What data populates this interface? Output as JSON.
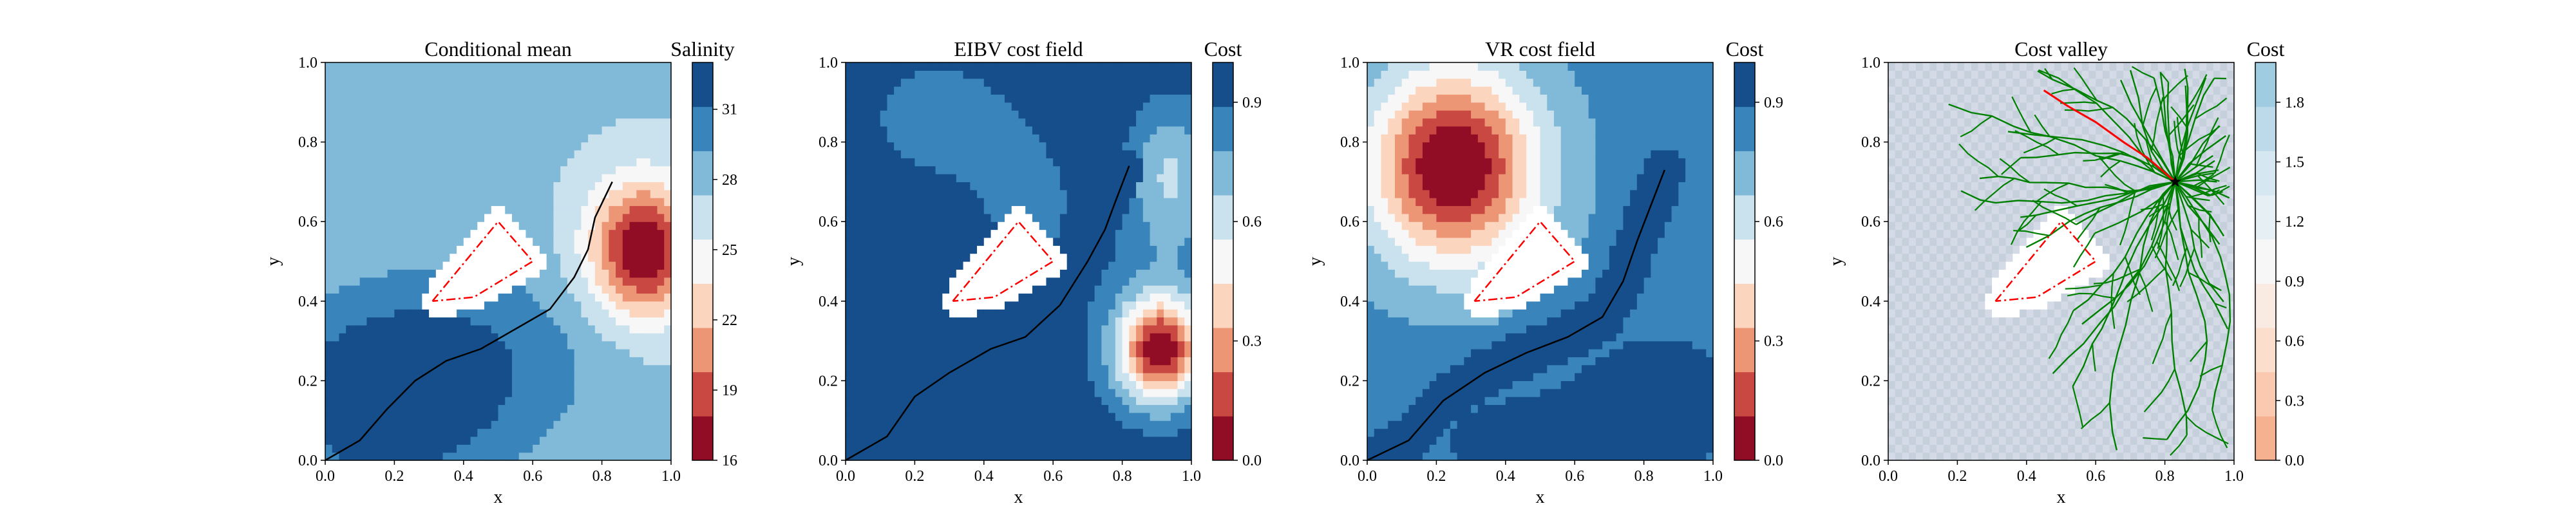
{
  "chart_data": [
    {
      "type": "heatmap",
      "title": "Conditional mean",
      "xlabel": "x",
      "ylabel": "y",
      "xlim": [
        0.0,
        1.0
      ],
      "ylim": [
        0.0,
        1.0
      ],
      "x_ticks": [
        "0.0",
        "0.2",
        "0.4",
        "0.6",
        "0.8",
        "1.0"
      ],
      "y_ticks": [
        "0.0",
        "0.2",
        "0.4",
        "0.6",
        "0.8",
        "1.0"
      ],
      "colorbar": {
        "title": "Salinity",
        "range": [
          16,
          33
        ],
        "ticks": [
          "16",
          "19",
          "22",
          "25",
          "28",
          "31"
        ],
        "tick_values": [
          16,
          19,
          22,
          25,
          28,
          31
        ],
        "colormap": "RdBu",
        "levels": 9
      },
      "field": {
        "background": 27.6,
        "bumps": [
          {
            "cx": 0.92,
            "cy": 0.53,
            "sx": 0.11,
            "sy": 0.12,
            "amp": -12
          },
          {
            "cx": 0.15,
            "cy": 0.15,
            "sx": 0.22,
            "sy": 0.17,
            "amp": 5
          },
          {
            "cx": 0.45,
            "cy": 0.25,
            "sx": 0.26,
            "sy": 0.18,
            "amp": 2.8
          }
        ]
      },
      "obstacle": {
        "polygon": [
          [
            0.31,
            0.4
          ],
          [
            0.5,
            0.6
          ],
          [
            0.6,
            0.5
          ],
          [
            0.43,
            0.41
          ],
          [
            0.31,
            0.4
          ]
        ]
      },
      "path": {
        "color": "#000000",
        "points": [
          [
            0.0,
            0.0
          ],
          [
            0.1,
            0.05
          ],
          [
            0.18,
            0.13
          ],
          [
            0.26,
            0.2
          ],
          [
            0.35,
            0.25
          ],
          [
            0.45,
            0.28
          ],
          [
            0.55,
            0.33
          ],
          [
            0.65,
            0.38
          ],
          [
            0.72,
            0.46
          ],
          [
            0.76,
            0.53
          ],
          [
            0.78,
            0.61
          ],
          [
            0.83,
            0.7
          ]
        ]
      }
    },
    {
      "type": "heatmap",
      "title": "EIBV cost field",
      "xlabel": "x",
      "ylabel": "y",
      "xlim": [
        0.0,
        1.0
      ],
      "ylim": [
        0.0,
        1.0
      ],
      "x_ticks": [
        "0.0",
        "0.2",
        "0.4",
        "0.6",
        "0.8",
        "1.0"
      ],
      "y_ticks": [
        "0.0",
        "0.2",
        "0.4",
        "0.6",
        "0.8",
        "1.0"
      ],
      "colorbar": {
        "title": "Cost",
        "range": [
          0.0,
          1.0
        ],
        "ticks": [
          "0.0",
          "0.3",
          "0.6",
          "0.9"
        ],
        "tick_values": [
          0.0,
          0.3,
          0.6,
          0.9
        ],
        "colormap": "RdBu",
        "levels": 9
      },
      "field": {
        "background": 1.0,
        "bumps": [
          {
            "cx": 0.91,
            "cy": 0.28,
            "sx": 0.085,
            "sy": 0.09,
            "amp": -0.85
          },
          {
            "cx": 0.27,
            "cy": 0.86,
            "sx": 0.15,
            "sy": 0.11,
            "amp": -0.2
          },
          {
            "cx": 0.52,
            "cy": 0.66,
            "sx": 0.12,
            "sy": 0.14,
            "amp": -0.15
          },
          {
            "cx": 0.94,
            "cy": 0.72,
            "sx": 0.09,
            "sy": 0.14,
            "amp": -0.33
          },
          {
            "cx": 0.9,
            "cy": 0.32,
            "sx": 0.18,
            "sy": 0.2,
            "amp": -0.15
          }
        ]
      },
      "obstacle": {
        "polygon": [
          [
            0.31,
            0.4
          ],
          [
            0.5,
            0.6
          ],
          [
            0.6,
            0.5
          ],
          [
            0.43,
            0.41
          ],
          [
            0.31,
            0.4
          ]
        ]
      },
      "path": {
        "color": "#000000",
        "points": [
          [
            0.0,
            0.0
          ],
          [
            0.12,
            0.06
          ],
          [
            0.2,
            0.16
          ],
          [
            0.3,
            0.22
          ],
          [
            0.42,
            0.28
          ],
          [
            0.52,
            0.31
          ],
          [
            0.62,
            0.39
          ],
          [
            0.7,
            0.5
          ],
          [
            0.75,
            0.58
          ],
          [
            0.78,
            0.65
          ],
          [
            0.82,
            0.74
          ]
        ]
      }
    },
    {
      "type": "heatmap",
      "title": "VR cost field",
      "xlabel": "x",
      "ylabel": "y",
      "xlim": [
        0.0,
        1.0
      ],
      "ylim": [
        0.0,
        1.0
      ],
      "x_ticks": [
        "0.0",
        "0.2",
        "0.4",
        "0.6",
        "0.8",
        "1.0"
      ],
      "y_ticks": [
        "0.0",
        "0.2",
        "0.4",
        "0.6",
        "0.8",
        "1.0"
      ],
      "colorbar": {
        "title": "Cost",
        "range": [
          0.0,
          1.0
        ],
        "ticks": [
          "0.0",
          "0.3",
          "0.6",
          "0.9"
        ],
        "tick_values": [
          0.0,
          0.3,
          0.6,
          0.9
        ],
        "colormap": "RdBu",
        "levels": 9
      },
      "field": {
        "background": 0.82,
        "bumps": [
          {
            "cx": 0.25,
            "cy": 0.74,
            "sx": 0.17,
            "sy": 0.17,
            "amp": -0.85
          },
          {
            "cx": 0.85,
            "cy": 0.15,
            "sx": 0.15,
            "sy": 0.11,
            "amp": 0.18
          },
          {
            "cx": 0.45,
            "cy": 0.05,
            "sx": 0.25,
            "sy": 0.12,
            "amp": 0.1
          }
        ]
      },
      "obstacle": {
        "polygon": [
          [
            0.31,
            0.4
          ],
          [
            0.5,
            0.6
          ],
          [
            0.6,
            0.5
          ],
          [
            0.43,
            0.41
          ],
          [
            0.31,
            0.4
          ]
        ]
      },
      "path": {
        "color": "#000000",
        "points": [
          [
            0.0,
            0.0
          ],
          [
            0.12,
            0.05
          ],
          [
            0.22,
            0.15
          ],
          [
            0.34,
            0.22
          ],
          [
            0.46,
            0.27
          ],
          [
            0.58,
            0.31
          ],
          [
            0.68,
            0.36
          ],
          [
            0.74,
            0.45
          ],
          [
            0.78,
            0.55
          ],
          [
            0.82,
            0.64
          ],
          [
            0.86,
            0.73
          ]
        ]
      }
    },
    {
      "type": "heatmap",
      "title": "Cost valley",
      "xlabel": "x",
      "ylabel": "y",
      "xlim": [
        0.0,
        1.0
      ],
      "ylim": [
        0.0,
        1.0
      ],
      "x_ticks": [
        "0.0",
        "0.2",
        "0.4",
        "0.6",
        "0.8",
        "1.0"
      ],
      "y_ticks": [
        "0.0",
        "0.2",
        "0.4",
        "0.6",
        "0.8",
        "1.0"
      ],
      "colorbar": {
        "title": "Cost",
        "range": [
          0.0,
          2.0
        ],
        "ticks": [
          "0.0",
          "0.3",
          "0.6",
          "0.9",
          "1.2",
          "1.5",
          "1.8"
        ],
        "tick_values": [
          0.0,
          0.3,
          0.6,
          0.9,
          1.2,
          1.5,
          1.8
        ],
        "colormap": "RdBu",
        "levels": 9
      },
      "field": {
        "background": 1.5,
        "bumps": []
      },
      "obstacle": {
        "polygon": [
          [
            0.31,
            0.4
          ],
          [
            0.5,
            0.6
          ],
          [
            0.6,
            0.5
          ],
          [
            0.43,
            0.41
          ],
          [
            0.31,
            0.4
          ]
        ]
      },
      "tree": {
        "color": "#008000",
        "root": [
          0.83,
          0.7
        ],
        "branches": 44
      },
      "path": {
        "color": "#ff0000",
        "points": [
          [
            0.45,
            0.93
          ],
          [
            0.52,
            0.89
          ],
          [
            0.6,
            0.85
          ],
          [
            0.68,
            0.8
          ],
          [
            0.75,
            0.76
          ],
          [
            0.83,
            0.7
          ]
        ]
      },
      "marker": {
        "point": [
          0.83,
          0.7
        ],
        "color": "#000000"
      }
    }
  ]
}
